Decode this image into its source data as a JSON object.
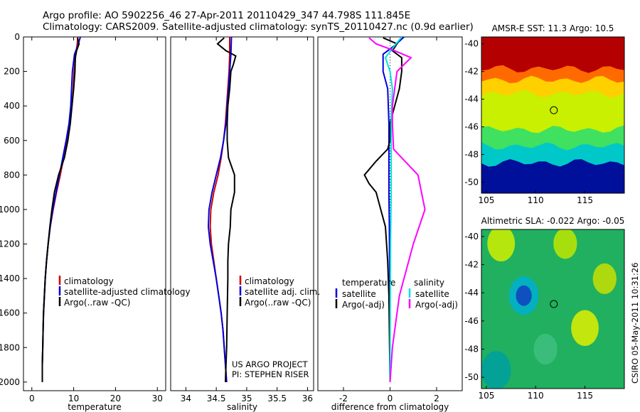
{
  "header": {
    "title_line1": "Argo profile: AO 5902256_46 27-Apr-2011 20110429_347 44.798S 111.845E",
    "title_line2": "Climatology: CARS2009. Satellite-adjusted climatology: synTS_20110427.nc (0.9d earlier)"
  },
  "footer_stamp": "CSIRO 05-May-2011 10:31:26",
  "colors": {
    "climatology": "#d00000",
    "satellite": "#0000e0",
    "argo": "#000000",
    "satellite_salinity": "#00e0e0",
    "argo_salinity": "#ff00ff"
  },
  "chart_data": [
    {
      "id": "temperature",
      "type": "line",
      "xlabel": "temperature",
      "ylabel": "",
      "xlim": [
        -2,
        32
      ],
      "ylim": [
        2050,
        0
      ],
      "xticks": [
        0,
        10,
        20,
        30
      ],
      "xtick_labels": [
        "0",
        "10",
        "20",
        "30"
      ],
      "yticks": [
        0,
        200,
        400,
        600,
        800,
        1000,
        1200,
        1400,
        1600,
        1800,
        2000
      ],
      "ytick_labels": [
        "0",
        "200",
        "400",
        "600",
        "800",
        "1000",
        "1200",
        "1400",
        "1600",
        "1800",
        "2000"
      ],
      "legend": {
        "placement": "lower-right",
        "entries": [
          "climatology",
          "satellite-adjusted climatology",
          "Argo(..raw -QC)"
        ]
      },
      "series": [
        {
          "name": "climatology",
          "color": "#d00000",
          "points": [
            [
              11,
              0
            ],
            [
              10.8,
              50
            ],
            [
              10.5,
              100
            ],
            [
              10.1,
              200
            ],
            [
              9.9,
              300
            ],
            [
              9.6,
              400
            ],
            [
              9.1,
              500
            ],
            [
              8.4,
              600
            ],
            [
              7.6,
              700
            ],
            [
              6.8,
              800
            ],
            [
              5.9,
              900
            ],
            [
              5.1,
              1000
            ],
            [
              4.4,
              1100
            ],
            [
              3.9,
              1200
            ],
            [
              3.5,
              1300
            ],
            [
              3.2,
              1400
            ],
            [
              3.0,
              1500
            ],
            [
              2.8,
              1600
            ],
            [
              2.7,
              1700
            ],
            [
              2.6,
              1800
            ],
            [
              2.5,
              1900
            ],
            [
              2.5,
              2000
            ]
          ]
        },
        {
          "name": "satellite-adjusted climatology",
          "color": "#0000e0",
          "points": [
            [
              11.6,
              0
            ],
            [
              11,
              50
            ],
            [
              10.2,
              100
            ],
            [
              9.7,
              200
            ],
            [
              9.5,
              300
            ],
            [
              9.3,
              400
            ],
            [
              8.9,
              500
            ],
            [
              8.2,
              600
            ],
            [
              7.4,
              700
            ],
            [
              6.6,
              800
            ],
            [
              5.8,
              900
            ],
            [
              5.0,
              1000
            ],
            [
              4.4,
              1100
            ],
            [
              3.9,
              1200
            ],
            [
              3.5,
              1300
            ],
            [
              3.2,
              1400
            ],
            [
              3.0,
              1500
            ],
            [
              2.8,
              1600
            ],
            [
              2.7,
              1700
            ],
            [
              2.6,
              1800
            ],
            [
              2.5,
              1900
            ],
            [
              2.5,
              2000
            ]
          ]
        },
        {
          "name": "Argo(..raw -QC)",
          "color": "#000000",
          "points": [
            [
              10.9,
              5
            ],
            [
              11.3,
              40
            ],
            [
              10.7,
              80
            ],
            [
              10.4,
              120
            ],
            [
              10.3,
              200
            ],
            [
              10.0,
              300
            ],
            [
              9.6,
              400
            ],
            [
              9.2,
              500
            ],
            [
              8.6,
              600
            ],
            [
              7.8,
              700
            ],
            [
              6.4,
              800
            ],
            [
              5.4,
              900
            ],
            [
              4.8,
              1000
            ],
            [
              4.3,
              1100
            ],
            [
              3.9,
              1200
            ],
            [
              3.5,
              1300
            ],
            [
              3.2,
              1400
            ],
            [
              3.0,
              1500
            ],
            [
              2.8,
              1600
            ],
            [
              2.7,
              1700
            ],
            [
              2.6,
              1800
            ],
            [
              2.5,
              1900
            ],
            [
              2.5,
              2000
            ]
          ]
        }
      ]
    },
    {
      "id": "salinity",
      "type": "line",
      "xlabel": "salinity",
      "ylabel": "",
      "xlim": [
        33.75,
        36.1
      ],
      "ylim": [
        2050,
        0
      ],
      "xticks": [
        34,
        34.5,
        35,
        35.5,
        36
      ],
      "xtick_labels": [
        "34",
        "34.5",
        "35",
        "35.5",
        "36"
      ],
      "legend": {
        "placement": "lower-right",
        "entries": [
          "climatology",
          "satellite adj. clim.",
          "Argo(..raw -QC)"
        ]
      },
      "annotation": [
        "US ARGO PROJECT",
        "PI: STEPHEN RISER"
      ],
      "series": [
        {
          "name": "climatology",
          "color": "#d00000",
          "points": [
            [
              34.72,
              0
            ],
            [
              34.72,
              100
            ],
            [
              34.71,
              200
            ],
            [
              34.69,
              300
            ],
            [
              34.67,
              400
            ],
            [
              34.65,
              500
            ],
            [
              34.62,
              600
            ],
            [
              34.58,
              700
            ],
            [
              34.53,
              800
            ],
            [
              34.46,
              900
            ],
            [
              34.41,
              1000
            ],
            [
              34.4,
              1100
            ],
            [
              34.42,
              1200
            ],
            [
              34.46,
              1300
            ],
            [
              34.5,
              1400
            ],
            [
              34.54,
              1500
            ],
            [
              34.58,
              1600
            ],
            [
              34.61,
              1700
            ],
            [
              34.63,
              1800
            ],
            [
              34.65,
              1900
            ],
            [
              34.67,
              2000
            ]
          ]
        },
        {
          "name": "satellite adj. clim.",
          "color": "#0000e0",
          "points": [
            [
              34.75,
              0
            ],
            [
              34.74,
              100
            ],
            [
              34.72,
              200
            ],
            [
              34.7,
              300
            ],
            [
              34.68,
              400
            ],
            [
              34.66,
              500
            ],
            [
              34.62,
              600
            ],
            [
              34.57,
              700
            ],
            [
              34.5,
              800
            ],
            [
              34.43,
              900
            ],
            [
              34.38,
              1000
            ],
            [
              34.37,
              1100
            ],
            [
              34.4,
              1200
            ],
            [
              34.45,
              1300
            ],
            [
              34.5,
              1400
            ],
            [
              34.54,
              1500
            ],
            [
              34.58,
              1600
            ],
            [
              34.61,
              1700
            ],
            [
              34.63,
              1800
            ],
            [
              34.65,
              1900
            ],
            [
              34.67,
              2000
            ]
          ]
        },
        {
          "name": "Argo(..raw -QC)",
          "color": "#000000",
          "points": [
            [
              34.63,
              5
            ],
            [
              34.52,
              40
            ],
            [
              34.66,
              80
            ],
            [
              34.82,
              110
            ],
            [
              34.78,
              160
            ],
            [
              34.74,
              200
            ],
            [
              34.72,
              300
            ],
            [
              34.69,
              400
            ],
            [
              34.68,
              500
            ],
            [
              34.68,
              600
            ],
            [
              34.7,
              700
            ],
            [
              34.8,
              800
            ],
            [
              34.8,
              900
            ],
            [
              34.74,
              1000
            ],
            [
              34.73,
              1100
            ],
            [
              34.7,
              1200
            ],
            [
              34.69,
              1300
            ],
            [
              34.69,
              1400
            ],
            [
              34.68,
              1600
            ],
            [
              34.67,
              1800
            ],
            [
              34.66,
              1900
            ],
            [
              34.65,
              2000
            ]
          ]
        }
      ]
    },
    {
      "id": "difference",
      "type": "line",
      "xlabel": "difference from climatology",
      "ylabel": "",
      "xlim": [
        -3.1,
        3.1
      ],
      "ylim": [
        2050,
        0
      ],
      "xticks": [
        -2,
        0,
        2
      ],
      "xtick_labels": [
        "-2",
        "0",
        "2"
      ],
      "legend": {
        "placement": "lower-right",
        "temperature_header": "temperature",
        "salinity_header": "salinity",
        "entries": [
          "satellite",
          "Argo(-adj)",
          "satellite",
          "Argo(-adj)"
        ]
      },
      "series": [
        {
          "name": "satellite",
          "group": "temperature",
          "color": "#0000e0",
          "points": [
            [
              0.6,
              0
            ],
            [
              0.2,
              50
            ],
            [
              -0.3,
              100
            ],
            [
              -0.3,
              200
            ],
            [
              -0.1,
              300
            ],
            [
              -0.05,
              500
            ],
            [
              -0.05,
              700
            ],
            [
              -0.05,
              900
            ],
            [
              -0.03,
              1100
            ],
            [
              -0.02,
              1300
            ],
            [
              -0.01,
              1500
            ],
            [
              0,
              2000
            ]
          ]
        },
        {
          "name": "Argo(-adj)",
          "group": "temperature",
          "color": "#000000",
          "points": [
            [
              -0.3,
              5
            ],
            [
              0.3,
              40
            ],
            [
              0.1,
              80
            ],
            [
              0.5,
              120
            ],
            [
              0.5,
              200
            ],
            [
              0.4,
              300
            ],
            [
              0.2,
              400
            ],
            [
              0,
              500
            ],
            [
              0,
              600
            ],
            [
              -0.1,
              650
            ],
            [
              -0.6,
              720
            ],
            [
              -1.1,
              800
            ],
            [
              -0.9,
              850
            ],
            [
              -0.6,
              900
            ],
            [
              -0.4,
              1000
            ],
            [
              -0.2,
              1100
            ],
            [
              -0.1,
              1300
            ],
            [
              -0.05,
              1500
            ],
            [
              0,
              2000
            ]
          ]
        },
        {
          "name": "satellite",
          "group": "salinity",
          "color": "#00e0e0",
          "points": [
            [
              0.5,
              0
            ],
            [
              0.2,
              50
            ],
            [
              -0.2,
              120
            ],
            [
              0,
              200
            ],
            [
              0.1,
              300
            ],
            [
              0.05,
              500
            ],
            [
              0.05,
              700
            ],
            [
              0.05,
              900
            ],
            [
              0.02,
              1200
            ],
            [
              0.01,
              1500
            ],
            [
              0,
              2000
            ]
          ]
        },
        {
          "name": "Argo(-adj)",
          "group": "salinity",
          "color": "#ff00ff",
          "points": [
            [
              -0.9,
              5
            ],
            [
              -0.6,
              40
            ],
            [
              0.2,
              80
            ],
            [
              0.9,
              120
            ],
            [
              0.6,
              160
            ],
            [
              0.3,
              200
            ],
            [
              0.2,
              300
            ],
            [
              0.1,
              400
            ],
            [
              0.1,
              500
            ],
            [
              0.15,
              650
            ],
            [
              1.2,
              800
            ],
            [
              1.5,
              1000
            ],
            [
              1.0,
              1200
            ],
            [
              0.4,
              1500
            ],
            [
              0.3,
              1600
            ],
            [
              0.1,
              1800
            ],
            [
              0,
              2000
            ]
          ]
        }
      ]
    },
    {
      "id": "sst_map",
      "type": "heatmap",
      "title": "AMSR-E SST: 11.3 Argo: 10.5",
      "xlim": [
        104.5,
        119
      ],
      "ylim": [
        -50.8,
        -39.5
      ],
      "xticks": [
        105,
        110,
        115
      ],
      "xtick_labels": [
        "105",
        "110",
        "115"
      ],
      "yticks": [
        -40,
        -42,
        -44,
        -46,
        -48,
        -50
      ],
      "ytick_labels": [
        "-40",
        "-42",
        "-44",
        "-46",
        "-48",
        "-50"
      ],
      "marker": {
        "lon": 111.845,
        "lat": -44.798
      },
      "bands": [
        {
          "lat_top": -39.5,
          "lat_bottom": -41.8,
          "color": "#b40000"
        },
        {
          "lat_top": -41.8,
          "lat_bottom": -42.6,
          "color": "#ff6a00"
        },
        {
          "lat_top": -42.6,
          "lat_bottom": -43.6,
          "color": "#ffd000"
        },
        {
          "lat_top": -43.6,
          "lat_bottom": -46.2,
          "color": "#c8f000"
        },
        {
          "lat_top": -46.2,
          "lat_bottom": -47.4,
          "color": "#40e060"
        },
        {
          "lat_top": -47.4,
          "lat_bottom": -48.6,
          "color": "#00c8c8"
        },
        {
          "lat_top": -48.6,
          "lat_bottom": -50.8,
          "color": "#00109a"
        }
      ]
    },
    {
      "id": "sla_map",
      "type": "heatmap",
      "title": "Altimetric SLA: -0.022 Argo: -0.05",
      "xlim": [
        104.5,
        119
      ],
      "ylim": [
        -50.8,
        -39.5
      ],
      "xticks": [
        105,
        110,
        115
      ],
      "xtick_labels": [
        "105",
        "110",
        "115"
      ],
      "yticks": [
        -40,
        -42,
        -44,
        -46,
        -48,
        -50
      ],
      "ytick_labels": [
        "-40",
        "-42",
        "-44",
        "-46",
        "-48",
        "-50"
      ],
      "marker": {
        "lon": 111.845,
        "lat": -44.798
      },
      "base_color": "#20b060",
      "blobs": [
        {
          "lon": 108.8,
          "lat": -44.2,
          "r": 0.8,
          "color": "#1040c0"
        },
        {
          "lon": 108.8,
          "lat": -44.2,
          "r": 1.5,
          "color": "#00b0d0"
        },
        {
          "lon": 106.5,
          "lat": -40.5,
          "r": 1.4,
          "color": "#d0f000"
        },
        {
          "lon": 113,
          "lat": -40.5,
          "r": 1.2,
          "color": "#c0e800"
        },
        {
          "lon": 115,
          "lat": -46.5,
          "r": 1.4,
          "color": "#e0f000"
        },
        {
          "lon": 117,
          "lat": -43,
          "r": 1.2,
          "color": "#c8e000"
        },
        {
          "lon": 106,
          "lat": -49.5,
          "r": 1.5,
          "color": "#00a0a0"
        },
        {
          "lon": 111,
          "lat": -48,
          "r": 1.2,
          "color": "#40c080"
        }
      ]
    }
  ]
}
